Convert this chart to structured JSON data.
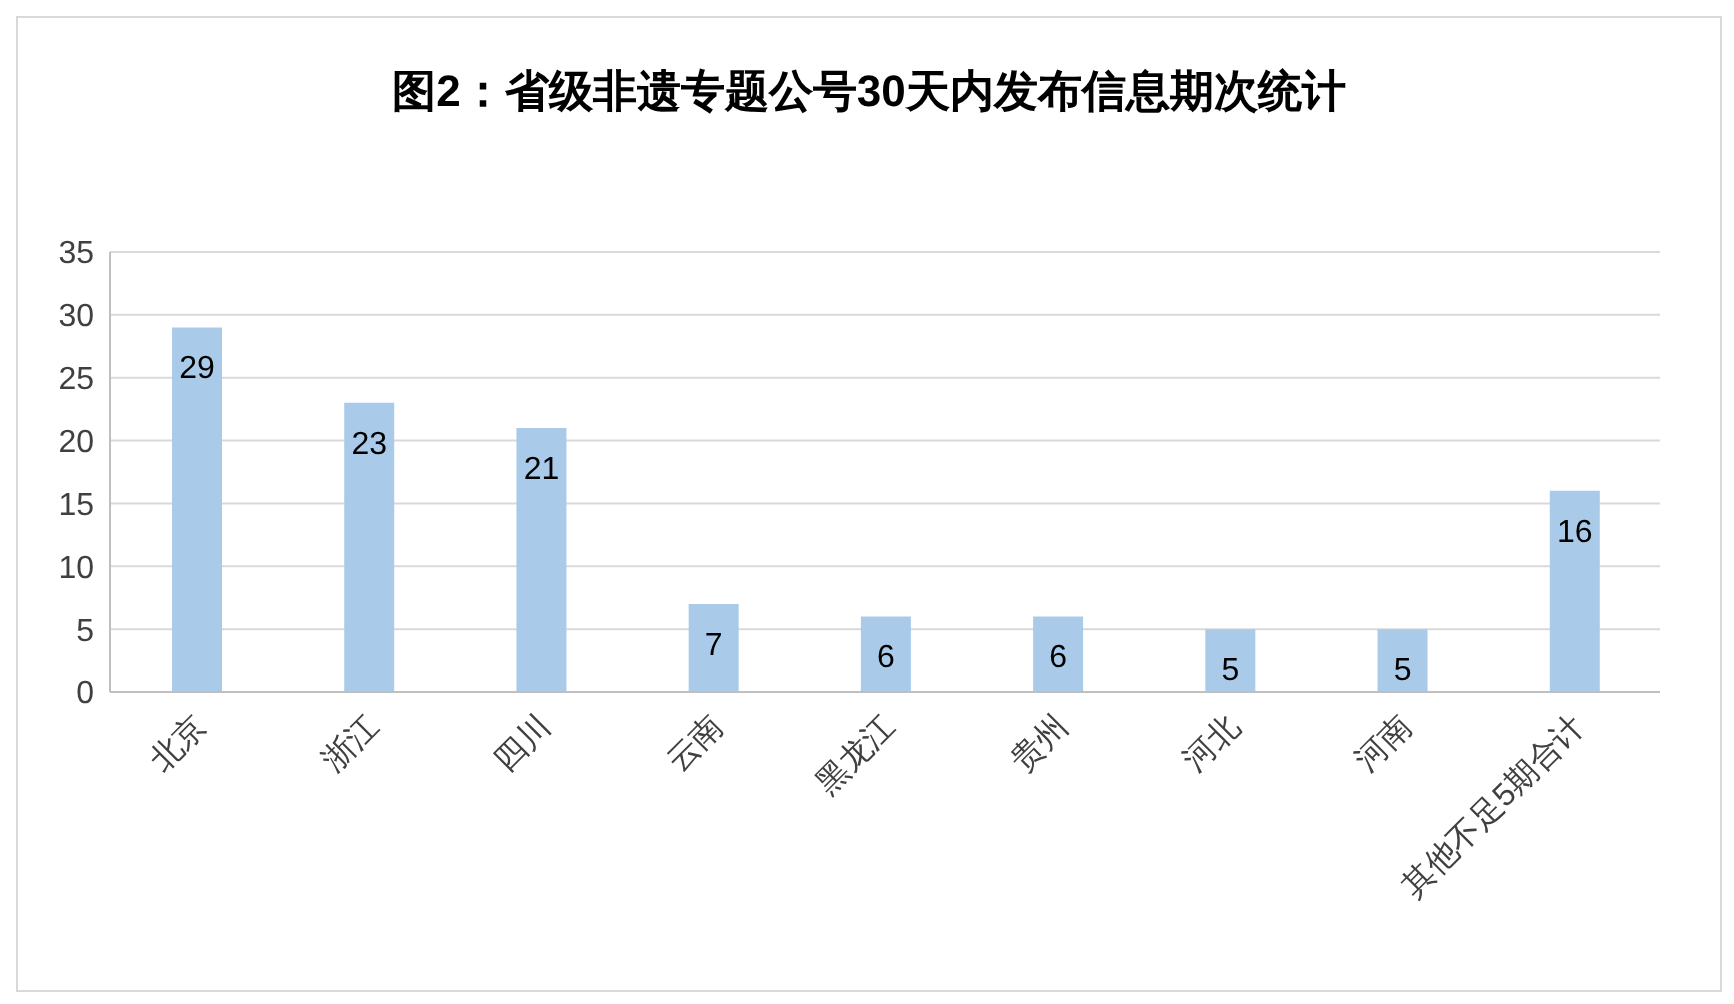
{
  "chart_data": {
    "type": "bar",
    "title": "图2：省级非遗专题公号30天内发布信息期次统计",
    "categories": [
      "北京",
      "浙江",
      "四川",
      "云南",
      "黑龙江",
      "贵州",
      "河北",
      "河南",
      "其他不足5期合计"
    ],
    "values": [
      29,
      23,
      21,
      7,
      6,
      6,
      5,
      5,
      16
    ],
    "color": "#a9cbe9",
    "ylim": [
      0,
      35
    ],
    "yticks": [
      0,
      5,
      10,
      15,
      20,
      25,
      30,
      35
    ],
    "grid": "y",
    "data_labels": true,
    "legend": false
  }
}
